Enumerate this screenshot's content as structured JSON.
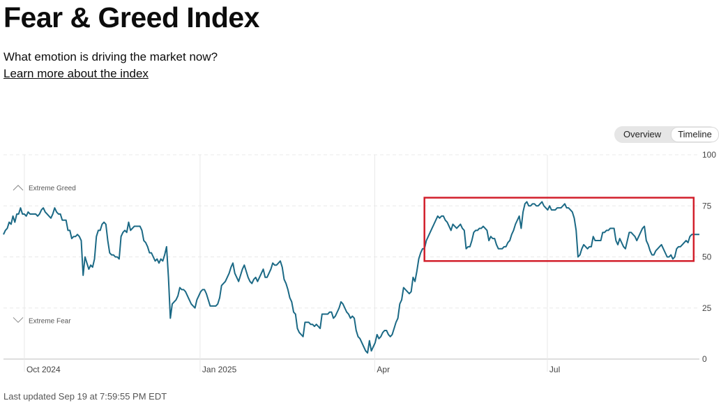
{
  "header": {
    "title": "Fear & Greed Index",
    "subtitle": "What emotion is driving the market now?",
    "learn_more": "Learn more about the index"
  },
  "view_toggle": {
    "options": [
      "Overview",
      "Timeline"
    ],
    "active": "Timeline"
  },
  "footer": {
    "last_updated": "Last updated Sep 19 at 7:59:55 PM EDT"
  },
  "colors": {
    "line": "#1b6985",
    "highlight": "#d21f2b",
    "grid": "#e8e8e8"
  },
  "chart_data": {
    "type": "line",
    "title": "",
    "ylim": [
      0,
      100
    ],
    "y_ticks": [
      "0",
      "25",
      "50",
      "75",
      "100"
    ],
    "x_ticks": [
      "Oct 2024",
      "Jan 2025",
      "Apr",
      "Jul"
    ],
    "zones": {
      "top": "Extreme Greed",
      "bottom": "Extreme Fear"
    },
    "series": [
      {
        "values": [
          61,
          63,
          64,
          67,
          66,
          70,
          67,
          71,
          71,
          74,
          71,
          71,
          70,
          72,
          71,
          71,
          71,
          71,
          70,
          71,
          73,
          74,
          72,
          71,
          70,
          69,
          71,
          74,
          72,
          71,
          71,
          68,
          68,
          68,
          63,
          63,
          59,
          60,
          60,
          61,
          60,
          58,
          41,
          50,
          47,
          44,
          46,
          45,
          49,
          60,
          63,
          63,
          66,
          67,
          66,
          58,
          52,
          51,
          51,
          50,
          50,
          49,
          60,
          62,
          63,
          62,
          67,
          63,
          64,
          65,
          65,
          65,
          65,
          63,
          58,
          57,
          55,
          52,
          52,
          50,
          48,
          49,
          47,
          49,
          48,
          51,
          55,
          40,
          20,
          27,
          28,
          29,
          31,
          35,
          34,
          34,
          33,
          31,
          29,
          27,
          26,
          25,
          29,
          31,
          33,
          34,
          34,
          32,
          29,
          26,
          26,
          26,
          26,
          27,
          30,
          36,
          37,
          38,
          40,
          42,
          45,
          47,
          42,
          40,
          38,
          41,
          44,
          46,
          43,
          40,
          38,
          37,
          39,
          40,
          38,
          40,
          42,
          44,
          40,
          40,
          42,
          44,
          47,
          46,
          46,
          47,
          48,
          45,
          39,
          37,
          34,
          30,
          28,
          23,
          22,
          15,
          13,
          12,
          11,
          18,
          18,
          18,
          17,
          17,
          16,
          17,
          16,
          15,
          22,
          22,
          22,
          22,
          23,
          23,
          20,
          21,
          23,
          25,
          28,
          27,
          25,
          23,
          22,
          20,
          21,
          20,
          14,
          11,
          10,
          8,
          6,
          4,
          3,
          9,
          4,
          6,
          8,
          12,
          10,
          11,
          13,
          14,
          14,
          12,
          11,
          12,
          15,
          18,
          20,
          27,
          29,
          35,
          34,
          33,
          32,
          33,
          40,
          38,
          43,
          49,
          52,
          54,
          54,
          58,
          60,
          62,
          64,
          66,
          68,
          70,
          69,
          70,
          70,
          68,
          67,
          65,
          63,
          66,
          65,
          64,
          65,
          66,
          64,
          63,
          54,
          55,
          55,
          58,
          62,
          63,
          63,
          64,
          64,
          65,
          64,
          63,
          58,
          60,
          59,
          59,
          56,
          54,
          54,
          54,
          55,
          55,
          57,
          58,
          61,
          63,
          66,
          68,
          70,
          64,
          72,
          76,
          77,
          75,
          75,
          76,
          76,
          75,
          75,
          76,
          77,
          75,
          74,
          73,
          75,
          73,
          73,
          73,
          74,
          74,
          74,
          75,
          76,
          74,
          74,
          73,
          72,
          69,
          63,
          50,
          51,
          54,
          56,
          55,
          54,
          55,
          55,
          60,
          58,
          58,
          58,
          58,
          62,
          62,
          63,
          63,
          64,
          64,
          64,
          58,
          56,
          59,
          57,
          55,
          54,
          58,
          62,
          62,
          61,
          60,
          58,
          60,
          62,
          64,
          65,
          58,
          56,
          53,
          51,
          51,
          53,
          54,
          55,
          56,
          54,
          52,
          50,
          50,
          51,
          49,
          50,
          54,
          55,
          55,
          56,
          57,
          58,
          57,
          60,
          61,
          61,
          61,
          61,
          61
        ]
      }
    ],
    "highlight_box": {
      "start_index": 222,
      "end_index": 364,
      "y_range": [
        48,
        79
      ]
    }
  }
}
